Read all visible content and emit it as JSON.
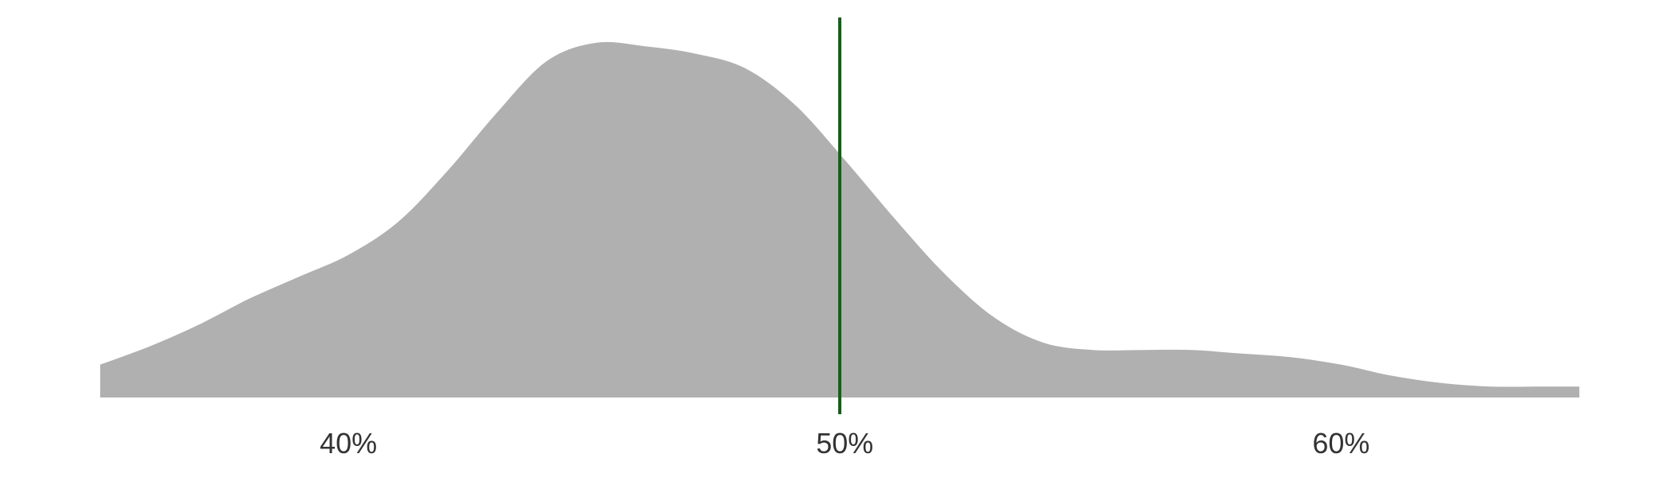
{
  "chart_data": {
    "type": "area",
    "title": "",
    "xlabel": "",
    "ylabel": "",
    "x_range": [
      35,
      64.8
    ],
    "y_range": [
      0,
      1.0
    ],
    "grid": false,
    "x_ticks": [
      {
        "value": 40,
        "label": "40%"
      },
      {
        "value": 50,
        "label": "50%"
      },
      {
        "value": 60,
        "label": "60%"
      }
    ],
    "reference_line": {
      "x": 49.9,
      "color": "#1a5c1a"
    },
    "series": [
      {
        "color": "#b0b0b0",
        "points": [
          {
            "x": 35.0,
            "y": 0.09
          },
          {
            "x": 36.0,
            "y": 0.14
          },
          {
            "x": 37.0,
            "y": 0.2
          },
          {
            "x": 38.0,
            "y": 0.27
          },
          {
            "x": 39.0,
            "y": 0.33
          },
          {
            "x": 40.0,
            "y": 0.39
          },
          {
            "x": 41.0,
            "y": 0.48
          },
          {
            "x": 42.0,
            "y": 0.62
          },
          {
            "x": 43.0,
            "y": 0.78
          },
          {
            "x": 44.0,
            "y": 0.92
          },
          {
            "x": 45.0,
            "y": 0.97
          },
          {
            "x": 46.0,
            "y": 0.96
          },
          {
            "x": 47.0,
            "y": 0.94
          },
          {
            "x": 48.0,
            "y": 0.9
          },
          {
            "x": 49.0,
            "y": 0.8
          },
          {
            "x": 50.0,
            "y": 0.65
          },
          {
            "x": 51.0,
            "y": 0.49
          },
          {
            "x": 52.0,
            "y": 0.34
          },
          {
            "x": 53.0,
            "y": 0.22
          },
          {
            "x": 54.0,
            "y": 0.15
          },
          {
            "x": 55.0,
            "y": 0.13
          },
          {
            "x": 56.0,
            "y": 0.13
          },
          {
            "x": 57.0,
            "y": 0.13
          },
          {
            "x": 58.0,
            "y": 0.12
          },
          {
            "x": 59.0,
            "y": 0.11
          },
          {
            "x": 60.0,
            "y": 0.09
          },
          {
            "x": 61.0,
            "y": 0.06
          },
          {
            "x": 62.0,
            "y": 0.04
          },
          {
            "x": 63.0,
            "y": 0.03
          },
          {
            "x": 64.0,
            "y": 0.03
          },
          {
            "x": 64.8,
            "y": 0.03
          }
        ]
      }
    ]
  }
}
